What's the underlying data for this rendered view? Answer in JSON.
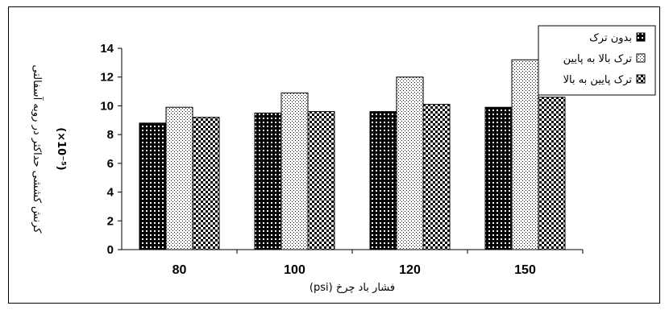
{
  "chart_data": {
    "type": "bar",
    "categories": [
      "80",
      "100",
      "120",
      "150"
    ],
    "series": [
      {
        "name": "بدون ترک",
        "values": [
          8.8,
          9.5,
          9.6,
          9.9
        ],
        "pattern": "dark-dots"
      },
      {
        "name": "ترک بالا به پایین",
        "values": [
          9.9,
          10.9,
          12.0,
          13.2
        ],
        "pattern": "fine-dots"
      },
      {
        "name": "ترک پایین به بالا",
        "values": [
          9.2,
          9.6,
          10.1,
          10.6
        ],
        "pattern": "checker"
      }
    ],
    "xlabel": "فشار باد چرخ (psi)",
    "ylabel": "کرنش کششی حداکثر در رویه آسفالتی",
    "ylabel_unit": "(×10⁻⁵)",
    "ylim": [
      0,
      14
    ],
    "yticks": [
      "0",
      "2",
      "4",
      "6",
      "8",
      "10",
      "12",
      "14"
    ],
    "grid": false,
    "legend_position": "top-right",
    "colors": {
      "dark": "#000000",
      "light": "#ffffff",
      "axis": "#000000"
    }
  }
}
